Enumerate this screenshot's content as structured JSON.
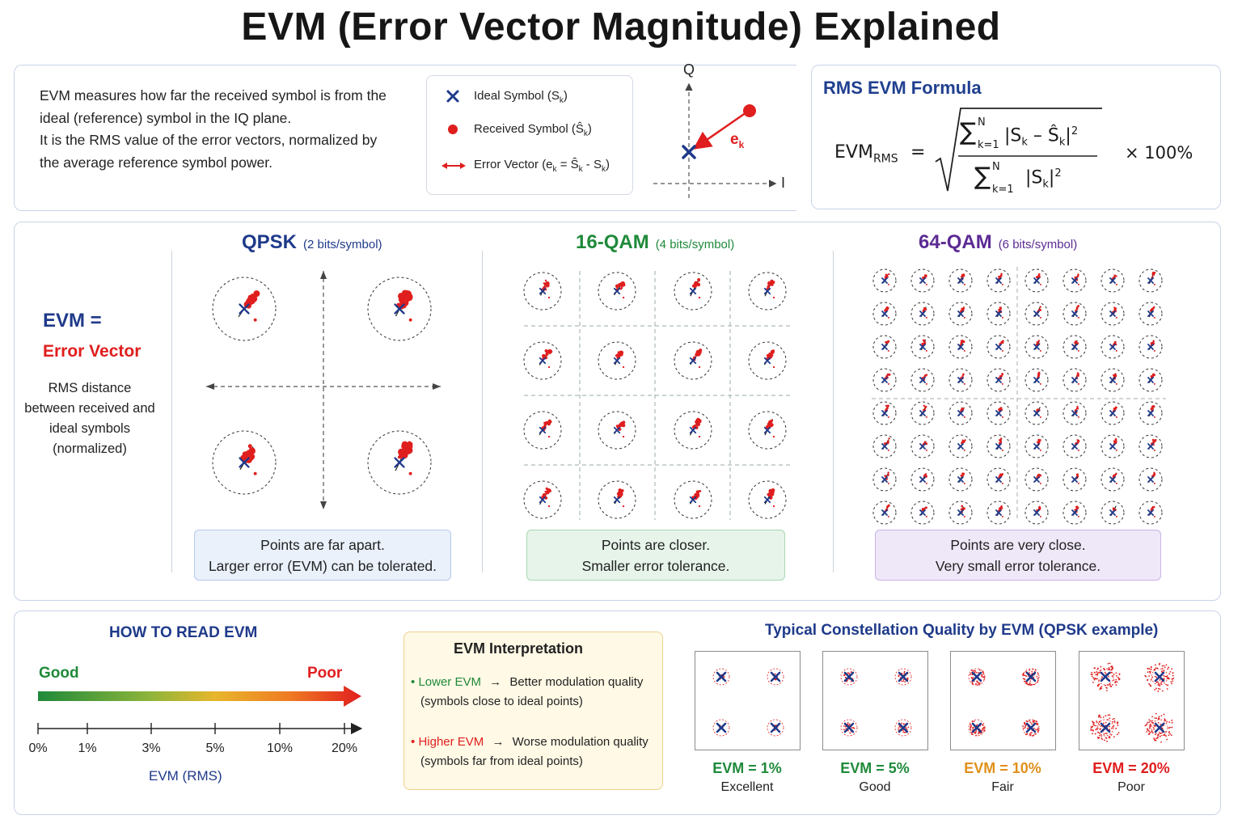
{
  "title": "EVM (Error Vector Magnitude) Explained",
  "intro": {
    "line1": "EVM measures how far the received symbol is from the",
    "line2": "ideal (reference) symbol in the IQ plane.",
    "line3": "It is the RMS value of the error vectors, normalized by",
    "line4": "the average reference symbol power."
  },
  "legend": {
    "ideal": "Ideal Symbol (S",
    "ideal_sub": "k",
    "received": "Received Symbol (Ŝ",
    "received_sub": "k",
    "error": "Error Vector  (e",
    "error_sub": "k",
    "error_rest": " = Ŝ",
    "error_sub2": "k",
    "error_rest2": " - S",
    "error_sub3": "k"
  },
  "iq_diagram": {
    "q_label": "Q",
    "i_label": "I",
    "e_label": "e",
    "e_sub": "k"
  },
  "formula": {
    "title": "RMS EVM Formula",
    "lhs": "EVM",
    "lhs_sub": "RMS",
    "equals": "=",
    "sum": "∑",
    "upper": "N",
    "lower": "k=1",
    "numerator_term": "|S",
    "numerator_mid": " – Ŝ",
    "numerator_end": "|",
    "k": "k",
    "exp": "2",
    "denominator_term": "|S",
    "denominator_end": "|",
    "times": "× 100%"
  },
  "left_note": {
    "evm_eq": "EVM =",
    "error_vector": "Error Vector",
    "desc1": "RMS distance",
    "desc2": "between received and",
    "desc3": "ideal symbols",
    "desc4": "(normalized)"
  },
  "modulations": [
    {
      "name": "QPSK",
      "bits": "(2 bits/symbol)",
      "color": "#1f3a8a",
      "cap1": "Points are far apart.",
      "cap2": "Larger error (EVM) can be tolerated.",
      "cap_bg": "#eaf1fb",
      "cap_border": "#b7c9ea"
    },
    {
      "name": "16-QAM",
      "bits": "(4 bits/symbol)",
      "color": "#1f8a3a",
      "cap1": "Points are closer.",
      "cap2": "Smaller error tolerance.",
      "cap_bg": "#e6f4ea",
      "cap_border": "#a9d7b4"
    },
    {
      "name": "64-QAM",
      "bits": "(6 bits/symbol)",
      "color": "#5b2a94",
      "cap1": "Points are very close.",
      "cap2": "Very small error tolerance.",
      "cap_bg": "#efe8f8",
      "cap_border": "#c9b4e6"
    }
  ],
  "how_to_read": {
    "heading": "HOW TO READ EVM",
    "good": "Good",
    "poor": "Poor",
    "ticks": [
      "0%",
      "1%",
      "3%",
      "5%",
      "10%",
      "20%"
    ],
    "axis_label": "EVM (RMS)"
  },
  "interpretation": {
    "heading": "EVM Interpretation",
    "lower_label": "Lower EVM",
    "lower_text": "Better modulation quality",
    "lower_sub": "(symbols close to ideal points)",
    "higher_label": "Higher EVM",
    "higher_text": "Worse modulation quality",
    "higher_sub": "(symbols far from ideal points)"
  },
  "quality": {
    "heading": "Typical Constellation Quality by EVM (QPSK example)",
    "items": [
      {
        "evm": "EVM = 1%",
        "rating": "Excellent",
        "color": "#1f8a3a",
        "spread": 0.01
      },
      {
        "evm": "EVM = 5%",
        "rating": "Good",
        "color": "#1f8a3a",
        "spread": 0.05
      },
      {
        "evm": "EVM = 10%",
        "rating": "Fair",
        "color": "#e0901a",
        "spread": 0.1
      },
      {
        "evm": "EVM = 20%",
        "rating": "Poor",
        "color": "#e01e1e",
        "spread": 0.2
      }
    ]
  },
  "colors": {
    "ideal": "#1f3a8a",
    "received": "#e01e1e",
    "panel_border": "#c9d3e8"
  }
}
